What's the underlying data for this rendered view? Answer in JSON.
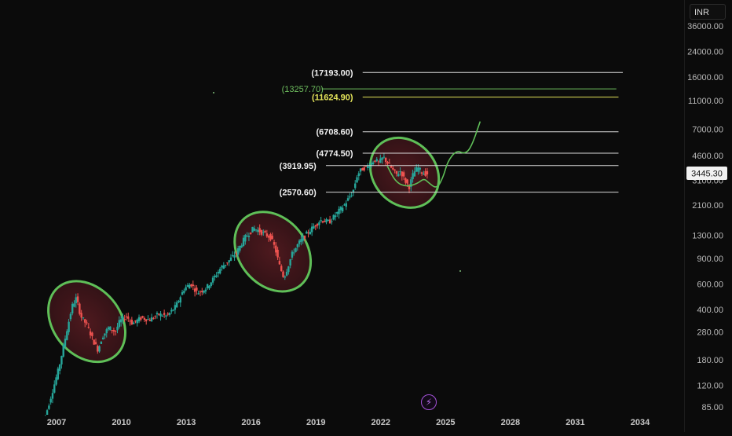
{
  "chart_data": {
    "type": "candlestick",
    "title": "",
    "y_scale": "log",
    "ylim": [
      80,
      40000
    ],
    "xlim": [
      2005.5,
      2035.0
    ],
    "currency": "INR",
    "last_price": "3445.30",
    "x_ticks": [
      {
        "label": "2007",
        "value": 2007
      },
      {
        "label": "2010",
        "value": 2010
      },
      {
        "label": "2013",
        "value": 2013
      },
      {
        "label": "2016",
        "value": 2016
      },
      {
        "label": "2019",
        "value": 2019
      },
      {
        "label": "2022",
        "value": 2022
      },
      {
        "label": "2025",
        "value": 2025
      },
      {
        "label": "2028",
        "value": 2028
      },
      {
        "label": "2031",
        "value": 2031
      },
      {
        "label": "2034",
        "value": 2034
      }
    ],
    "y_ticks": [
      {
        "label": "36000.00",
        "value": 36000
      },
      {
        "label": "24000.00",
        "value": 24000
      },
      {
        "label": "16000.00",
        "value": 16000
      },
      {
        "label": "11000.00",
        "value": 11000
      },
      {
        "label": "7000.00",
        "value": 7000
      },
      {
        "label": "4600.00",
        "value": 4600
      },
      {
        "label": "3100.00",
        "value": 3100
      },
      {
        "label": "2100.00",
        "value": 2100
      },
      {
        "label": "1300.00",
        "value": 1300
      },
      {
        "label": "900.00",
        "value": 900
      },
      {
        "label": "600.00",
        "value": 600
      },
      {
        "label": "400.00",
        "value": 400
      },
      {
        "label": "280.00",
        "value": 280
      },
      {
        "label": "180.00",
        "value": 180
      },
      {
        "label": "120.00",
        "value": 120
      },
      {
        "label": "85.00",
        "value": 85
      }
    ],
    "levels": [
      {
        "label": "(17193.00)",
        "value": 17193,
        "color": "#d9d9d9",
        "x_start": 2020.8,
        "x_end": 2033.2
      },
      {
        "label": "(13257.70)",
        "value": 13257.7,
        "color": "#6fbf5f",
        "x_start": 2018.9,
        "x_end": 2032.9
      },
      {
        "label": "(11624.90)",
        "value": 11624.9,
        "color": "#e3e35a",
        "x_start": 2020.8,
        "x_end": 2033.0
      },
      {
        "label": "(6708.60)",
        "value": 6708.6,
        "color": "#d9d9d9",
        "x_start": 2020.8,
        "x_end": 2033.0
      },
      {
        "label": "(4774.50)",
        "value": 4774.5,
        "color": "#d9d9d9",
        "x_start": 2020.8,
        "x_end": 2033.0
      },
      {
        "label": "(3919.95)",
        "value": 3919.95,
        "color": "#d9d9d9",
        "x_start": 2019.1,
        "x_end": 2033.0
      },
      {
        "label": "(2570.60)",
        "value": 2570.6,
        "color": "#d9d9d9",
        "x_start": 2019.1,
        "x_end": 2033.0
      }
    ],
    "highlight_zones": [
      {
        "x_center": 2008.4,
        "y_center": 330,
        "x_radius": 1.55,
        "y_span": [
          170,
          700
        ],
        "tilt_deg": 50
      },
      {
        "x_center": 2017.0,
        "y_center": 1000,
        "x_radius": 1.55,
        "y_span": [
          500,
          2000
        ],
        "tilt_deg": 50
      },
      {
        "x_center": 2023.1,
        "y_center": 3500,
        "x_radius": 1.45,
        "y_span": [
          2000,
          6600
        ],
        "tilt_deg": 48
      }
    ],
    "projection_path": [
      [
        2022.3,
        3900
      ],
      [
        2022.7,
        3000
      ],
      [
        2023.2,
        2800
      ],
      [
        2023.7,
        2950
      ],
      [
        2024.0,
        3200
      ],
      [
        2024.2,
        3000
      ],
      [
        2024.6,
        2700
      ],
      [
        2024.9,
        3300
      ],
      [
        2025.1,
        4200
      ],
      [
        2025.5,
        5000
      ],
      [
        2025.9,
        4700
      ],
      [
        2026.2,
        5300
      ],
      [
        2026.6,
        7900
      ]
    ],
    "price_series": [
      [
        2006.4,
        60
      ],
      [
        2006.9,
        110
      ],
      [
        2007.2,
        160
      ],
      [
        2007.5,
        260
      ],
      [
        2007.8,
        420
      ],
      [
        2008.0,
        480
      ],
      [
        2008.2,
        360
      ],
      [
        2008.5,
        310
      ],
      [
        2008.8,
        240
      ],
      [
        2009.0,
        210
      ],
      [
        2009.2,
        260
      ],
      [
        2009.5,
        300
      ],
      [
        2009.8,
        280
      ],
      [
        2010.0,
        330
      ],
      [
        2010.3,
        360
      ],
      [
        2010.6,
        320
      ],
      [
        2011.0,
        350
      ],
      [
        2011.4,
        340
      ],
      [
        2011.8,
        370
      ],
      [
        2012.2,
        360
      ],
      [
        2012.6,
        420
      ],
      [
        2013.0,
        560
      ],
      [
        2013.3,
        600
      ],
      [
        2013.6,
        520
      ],
      [
        2014.0,
        560
      ],
      [
        2014.3,
        640
      ],
      [
        2014.7,
        780
      ],
      [
        2015.0,
        850
      ],
      [
        2015.4,
        980
      ],
      [
        2015.8,
        1250
      ],
      [
        2016.2,
        1450
      ],
      [
        2016.5,
        1380
      ],
      [
        2016.8,
        1300
      ],
      [
        2017.0,
        1250
      ],
      [
        2017.2,
        1050
      ],
      [
        2017.4,
        800
      ],
      [
        2017.6,
        660
      ],
      [
        2017.8,
        800
      ],
      [
        2018.0,
        980
      ],
      [
        2018.3,
        1150
      ],
      [
        2018.6,
        1300
      ],
      [
        2019.0,
        1500
      ],
      [
        2019.3,
        1650
      ],
      [
        2019.7,
        1600
      ],
      [
        2020.0,
        1800
      ],
      [
        2020.4,
        2100
      ],
      [
        2020.8,
        2600
      ],
      [
        2021.0,
        3400
      ],
      [
        2021.2,
        3700
      ],
      [
        2021.5,
        3900
      ],
      [
        2021.8,
        4300
      ],
      [
        2022.0,
        4100
      ],
      [
        2022.2,
        4500
      ],
      [
        2022.5,
        3900
      ],
      [
        2022.8,
        3400
      ],
      [
        2023.0,
        3600
      ],
      [
        2023.2,
        3100
      ],
      [
        2023.4,
        2800
      ],
      [
        2023.6,
        3500
      ],
      [
        2023.8,
        3800
      ],
      [
        2024.0,
        3500
      ],
      [
        2024.2,
        3445
      ]
    ]
  }
}
